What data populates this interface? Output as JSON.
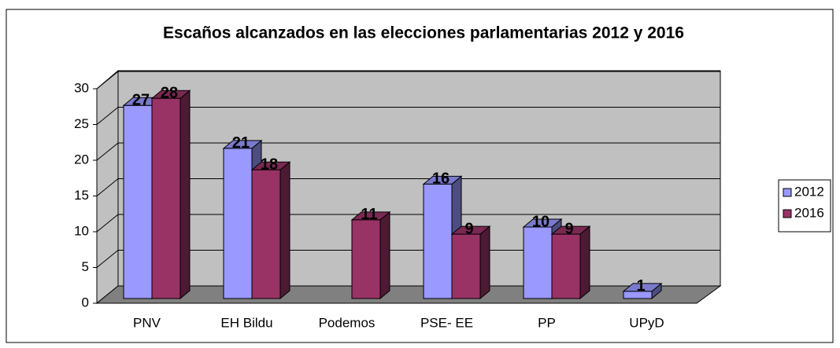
{
  "chart_data": {
    "type": "bar3d",
    "title": "Escaños alcanzados en las elecciones parlamentarias 2012 y 2016",
    "categories": [
      "PNV",
      "EH Bildu",
      "Podemos",
      "PSE- EE",
      "PP",
      "UPyD"
    ],
    "series": [
      {
        "name": "2012",
        "color": "#9999ff",
        "values": [
          27,
          21,
          null,
          16,
          10,
          1
        ]
      },
      {
        "name": "2016",
        "color": "#993366",
        "values": [
          28,
          18,
          11,
          9,
          9,
          null
        ]
      }
    ],
    "ylim": [
      0,
      30
    ],
    "yticks": [
      0,
      5,
      10,
      15,
      20,
      25,
      30
    ],
    "grid": true,
    "legend": "right"
  }
}
